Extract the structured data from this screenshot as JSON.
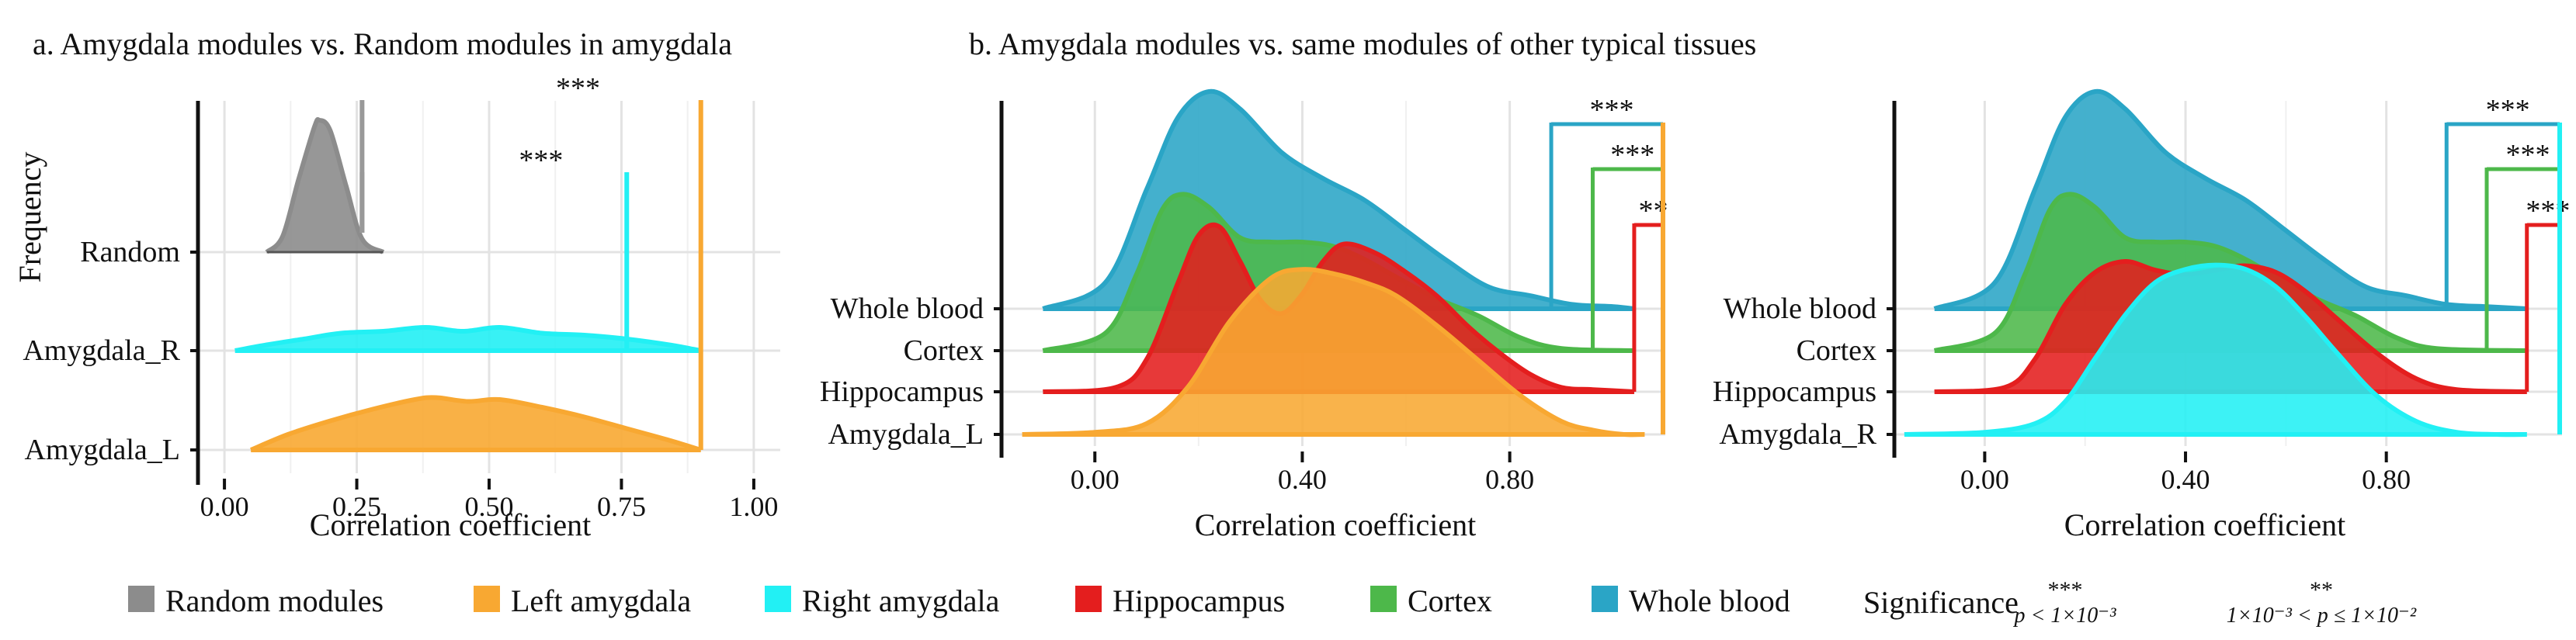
{
  "colors": {
    "random": "#8c8c8c",
    "left_amygdala": "#f8a832",
    "right_amygdala": "#22f0f4",
    "hippocampus": "#e41e1e",
    "cortex": "#4db84a",
    "whole_blood": "#2aa5c6",
    "grid": "#e3e3e3",
    "axis": "#111111"
  },
  "chart_data": [
    {
      "type": "ridgeline",
      "title": "a. Amygdala modules vs. Random modules in amygdala",
      "xlabel": "Correlation coefficient",
      "ylabel": "Frequency",
      "xlim": [
        -0.05,
        1.05
      ],
      "xticks": [
        0,
        0.25,
        0.5,
        0.75,
        1.0
      ],
      "xtick_labels": [
        "0.00",
        "0.25",
        "0.50",
        "0.75",
        "1.00"
      ],
      "ridges": [
        "Random",
        "Amygdala_R",
        "Amygdala_L"
      ],
      "series": [
        {
          "ridge": "Random",
          "color_key": "random",
          "x": [
            0.08,
            0.11,
            0.14,
            0.17,
            0.18,
            0.2,
            0.23,
            0.26,
            0.3
          ],
          "y": [
            0.0,
            0.12,
            0.55,
            0.95,
            1.0,
            0.92,
            0.5,
            0.1,
            0.0
          ]
        },
        {
          "ridge": "Amygdala_R",
          "color_key": "right_amygdala",
          "x": [
            0.02,
            0.08,
            0.15,
            0.22,
            0.3,
            0.38,
            0.45,
            0.52,
            0.6,
            0.68,
            0.76,
            0.84,
            0.9
          ],
          "y": [
            0.0,
            0.03,
            0.06,
            0.09,
            0.1,
            0.12,
            0.1,
            0.12,
            0.09,
            0.08,
            0.06,
            0.03,
            0.0
          ]
        },
        {
          "ridge": "Amygdala_L",
          "color_key": "left_amygdala",
          "x": [
            0.05,
            0.12,
            0.2,
            0.28,
            0.36,
            0.4,
            0.46,
            0.52,
            0.6,
            0.68,
            0.76,
            0.84,
            0.9
          ],
          "y": [
            0.0,
            0.08,
            0.15,
            0.21,
            0.26,
            0.27,
            0.25,
            0.26,
            0.22,
            0.17,
            0.11,
            0.05,
            0.0
          ]
        }
      ],
      "significance": [
        {
          "compare": "Random vs Amygdala_R",
          "x": 0.76,
          "label": "***",
          "color_key": "right_amygdala"
        },
        {
          "compare": "Random vs Amygdala_L",
          "x": 0.9,
          "label": "***",
          "color_key": "left_amygdala"
        }
      ]
    },
    {
      "type": "ridgeline",
      "title": "b. Amygdala modules vs. same modules of other typical tissues",
      "xlabel": "Correlation coefficient",
      "xlim": [
        -0.18,
        1.1
      ],
      "xticks": [
        0,
        0.4,
        0.8
      ],
      "xtick_labels": [
        "0.00",
        "0.40",
        "0.80"
      ],
      "ridges": [
        "Whole blood",
        "Cortex",
        "Hippocampus",
        "Amygdala_L"
      ],
      "series": [
        {
          "ridge": "Whole blood",
          "color_key": "whole_blood",
          "x": [
            -0.1,
            0.02,
            0.1,
            0.16,
            0.22,
            0.28,
            0.36,
            0.44,
            0.52,
            0.6,
            0.68,
            0.76,
            0.84,
            0.92,
            1.0,
            1.04
          ],
          "y": [
            0.0,
            0.12,
            0.55,
            0.88,
            1.0,
            0.92,
            0.72,
            0.6,
            0.5,
            0.36,
            0.22,
            0.1,
            0.06,
            0.02,
            0.01,
            0.0
          ]
        },
        {
          "ridge": "Cortex",
          "color_key": "cortex",
          "x": [
            -0.1,
            0.02,
            0.08,
            0.13,
            0.17,
            0.22,
            0.28,
            0.34,
            0.4,
            0.46,
            0.52,
            0.58,
            0.66,
            0.74,
            0.82,
            0.9,
            1.04
          ],
          "y": [
            0.0,
            0.08,
            0.35,
            0.65,
            0.72,
            0.66,
            0.52,
            0.5,
            0.5,
            0.48,
            0.42,
            0.34,
            0.24,
            0.16,
            0.06,
            0.01,
            0.0
          ]
        },
        {
          "ridge": "Hippocampus",
          "color_key": "hippocampus",
          "x": [
            -0.1,
            0.04,
            0.1,
            0.16,
            0.2,
            0.24,
            0.28,
            0.32,
            0.36,
            0.4,
            0.44,
            0.48,
            0.54,
            0.6,
            0.66,
            0.72,
            0.78,
            0.84,
            0.9,
            0.96,
            1.04
          ],
          "y": [
            0.0,
            0.02,
            0.15,
            0.5,
            0.72,
            0.76,
            0.6,
            0.42,
            0.36,
            0.45,
            0.6,
            0.68,
            0.64,
            0.55,
            0.44,
            0.3,
            0.18,
            0.08,
            0.02,
            0.01,
            0.0
          ]
        },
        {
          "ridge": "Amygdala_L",
          "color_key": "left_amygdala",
          "x": [
            -0.14,
            0.0,
            0.1,
            0.18,
            0.26,
            0.34,
            0.4,
            0.46,
            0.52,
            0.58,
            0.66,
            0.74,
            0.82,
            0.9,
            0.96,
            1.02,
            1.06
          ],
          "y": [
            0.0,
            0.01,
            0.05,
            0.22,
            0.52,
            0.72,
            0.76,
            0.74,
            0.7,
            0.64,
            0.5,
            0.34,
            0.18,
            0.06,
            0.02,
            0.0,
            0.0
          ]
        }
      ],
      "significance": [
        {
          "compare": "Amygdala_L vs Hippocampus",
          "x": 1.04,
          "label": "**",
          "color_key": "hippocampus"
        },
        {
          "compare": "Amygdala_L vs Cortex",
          "x": 0.96,
          "label": "***",
          "color_key": "cortex"
        },
        {
          "compare": "Amygdala_L vs Whole blood",
          "x": 0.88,
          "label": "***",
          "color_key": "whole_blood"
        }
      ]
    },
    {
      "type": "ridgeline",
      "title": "",
      "xlabel": "Correlation coefficient",
      "xlim": [
        -0.18,
        1.15
      ],
      "xticks": [
        0,
        0.4,
        0.8
      ],
      "xtick_labels": [
        "0.00",
        "0.40",
        "0.80"
      ],
      "ridges": [
        "Whole blood",
        "Cortex",
        "Hippocampus",
        "Amygdala_R"
      ],
      "series": [
        {
          "ridge": "Whole blood",
          "color_key": "whole_blood",
          "x": [
            -0.1,
            0.02,
            0.1,
            0.16,
            0.22,
            0.28,
            0.36,
            0.44,
            0.52,
            0.6,
            0.68,
            0.76,
            0.84,
            0.92,
            1.0,
            1.08
          ],
          "y": [
            0.0,
            0.12,
            0.55,
            0.88,
            1.0,
            0.92,
            0.72,
            0.6,
            0.5,
            0.36,
            0.22,
            0.1,
            0.06,
            0.02,
            0.01,
            0.0
          ]
        },
        {
          "ridge": "Cortex",
          "color_key": "cortex",
          "x": [
            -0.1,
            0.02,
            0.08,
            0.13,
            0.17,
            0.22,
            0.28,
            0.34,
            0.4,
            0.46,
            0.52,
            0.58,
            0.66,
            0.74,
            0.82,
            0.9,
            1.08
          ],
          "y": [
            0.0,
            0.08,
            0.35,
            0.65,
            0.72,
            0.66,
            0.52,
            0.5,
            0.5,
            0.48,
            0.42,
            0.34,
            0.24,
            0.16,
            0.06,
            0.01,
            0.0
          ]
        },
        {
          "ridge": "Hippocampus",
          "color_key": "hippocampus",
          "x": [
            -0.1,
            0.04,
            0.1,
            0.16,
            0.22,
            0.28,
            0.34,
            0.4,
            0.46,
            0.52,
            0.58,
            0.64,
            0.7,
            0.78,
            0.86,
            0.94,
            1.08
          ],
          "y": [
            0.0,
            0.02,
            0.15,
            0.4,
            0.55,
            0.6,
            0.56,
            0.54,
            0.56,
            0.58,
            0.55,
            0.46,
            0.34,
            0.18,
            0.06,
            0.01,
            0.0
          ]
        },
        {
          "ridge": "Amygdala_R",
          "color_key": "right_amygdala",
          "x": [
            -0.16,
            0.0,
            0.1,
            0.16,
            0.22,
            0.28,
            0.34,
            0.4,
            0.46,
            0.52,
            0.58,
            0.64,
            0.7,
            0.78,
            0.86,
            0.94,
            1.02,
            1.08
          ],
          "y": [
            0.0,
            0.01,
            0.05,
            0.15,
            0.35,
            0.55,
            0.7,
            0.76,
            0.78,
            0.76,
            0.68,
            0.54,
            0.38,
            0.18,
            0.06,
            0.01,
            0.0,
            0.0
          ]
        }
      ],
      "significance": [
        {
          "compare": "Amygdala_R vs Hippocampus",
          "x": 1.08,
          "label": "***",
          "color_key": "hippocampus"
        },
        {
          "compare": "Amygdala_R vs Cortex",
          "x": 1.0,
          "label": "***",
          "color_key": "cortex"
        },
        {
          "compare": "Amygdala_R vs Whole blood",
          "x": 0.92,
          "label": "***",
          "color_key": "whole_blood"
        }
      ]
    }
  ],
  "legend": {
    "items": [
      {
        "label": "Random modules",
        "color_key": "random"
      },
      {
        "label": "Left amygdala",
        "color_key": "left_amygdala"
      },
      {
        "label": "Right amygdala",
        "color_key": "right_amygdala"
      },
      {
        "label": "Hippocampus",
        "color_key": "hippocampus"
      },
      {
        "label": "Cortex",
        "color_key": "cortex"
      },
      {
        "label": "Whole blood",
        "color_key": "whole_blood"
      }
    ],
    "significance_title": "Significance",
    "sig1": {
      "stars": "***",
      "text": "p < 1×10⁻³"
    },
    "sig2": {
      "stars": "**",
      "text": "1×10⁻³ < p ≤ 1×10⁻²"
    }
  }
}
